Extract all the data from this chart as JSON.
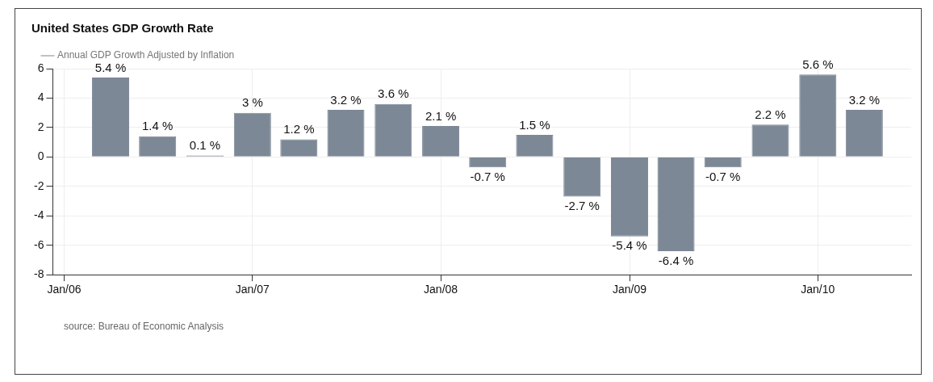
{
  "chart_data": {
    "type": "bar",
    "title": "United States GDP Growth Rate",
    "x": [
      "2006-04",
      "2006-07",
      "2006-10",
      "2007-01",
      "2007-04",
      "2007-07",
      "2007-10",
      "2008-01",
      "2008-04",
      "2008-07",
      "2008-10",
      "2009-01",
      "2009-04",
      "2009-07",
      "2009-10",
      "2010-01",
      "2010-04"
    ],
    "series": [
      {
        "name": "Annual GDP Growth Adjusted by Inflation",
        "color": "#7d8896",
        "values": [
          5.4,
          1.4,
          0.1,
          3,
          1.2,
          3.2,
          3.6,
          2.1,
          -0.7,
          1.5,
          -2.7,
          -5.4,
          -6.4,
          -0.7,
          2.2,
          5.6,
          3.2
        ],
        "value_labels": [
          "5.4 %",
          "1.4 %",
          "0.1 %",
          "3 %",
          "1.2 %",
          "3.2 %",
          "3.6 %",
          "2.1 %",
          "-0.7 %",
          "1.5 %",
          "-2.7 %",
          "-5.4 %",
          "-6.4 %",
          "-0.7 %",
          "2.2 %",
          "5.6 %",
          "3.2 %"
        ]
      }
    ],
    "xlim": [
      "2005-12-10",
      "2010-07-01"
    ],
    "xticks": [
      {
        "value": "2006-01",
        "label": "Jan/06"
      },
      {
        "value": "2007-01",
        "label": "Jan/07"
      },
      {
        "value": "2008-01",
        "label": "Jan/08"
      },
      {
        "value": "2009-01",
        "label": "Jan/09"
      },
      {
        "value": "2010-01",
        "label": "Jan/10"
      }
    ],
    "ylim": [
      -8,
      6
    ],
    "yticks": [
      -8,
      -6,
      -4,
      -2,
      0,
      2,
      4,
      6
    ],
    "grid": true,
    "legend": "top left",
    "annotations": [
      "source: Bureau of Economic Analysis"
    ]
  }
}
